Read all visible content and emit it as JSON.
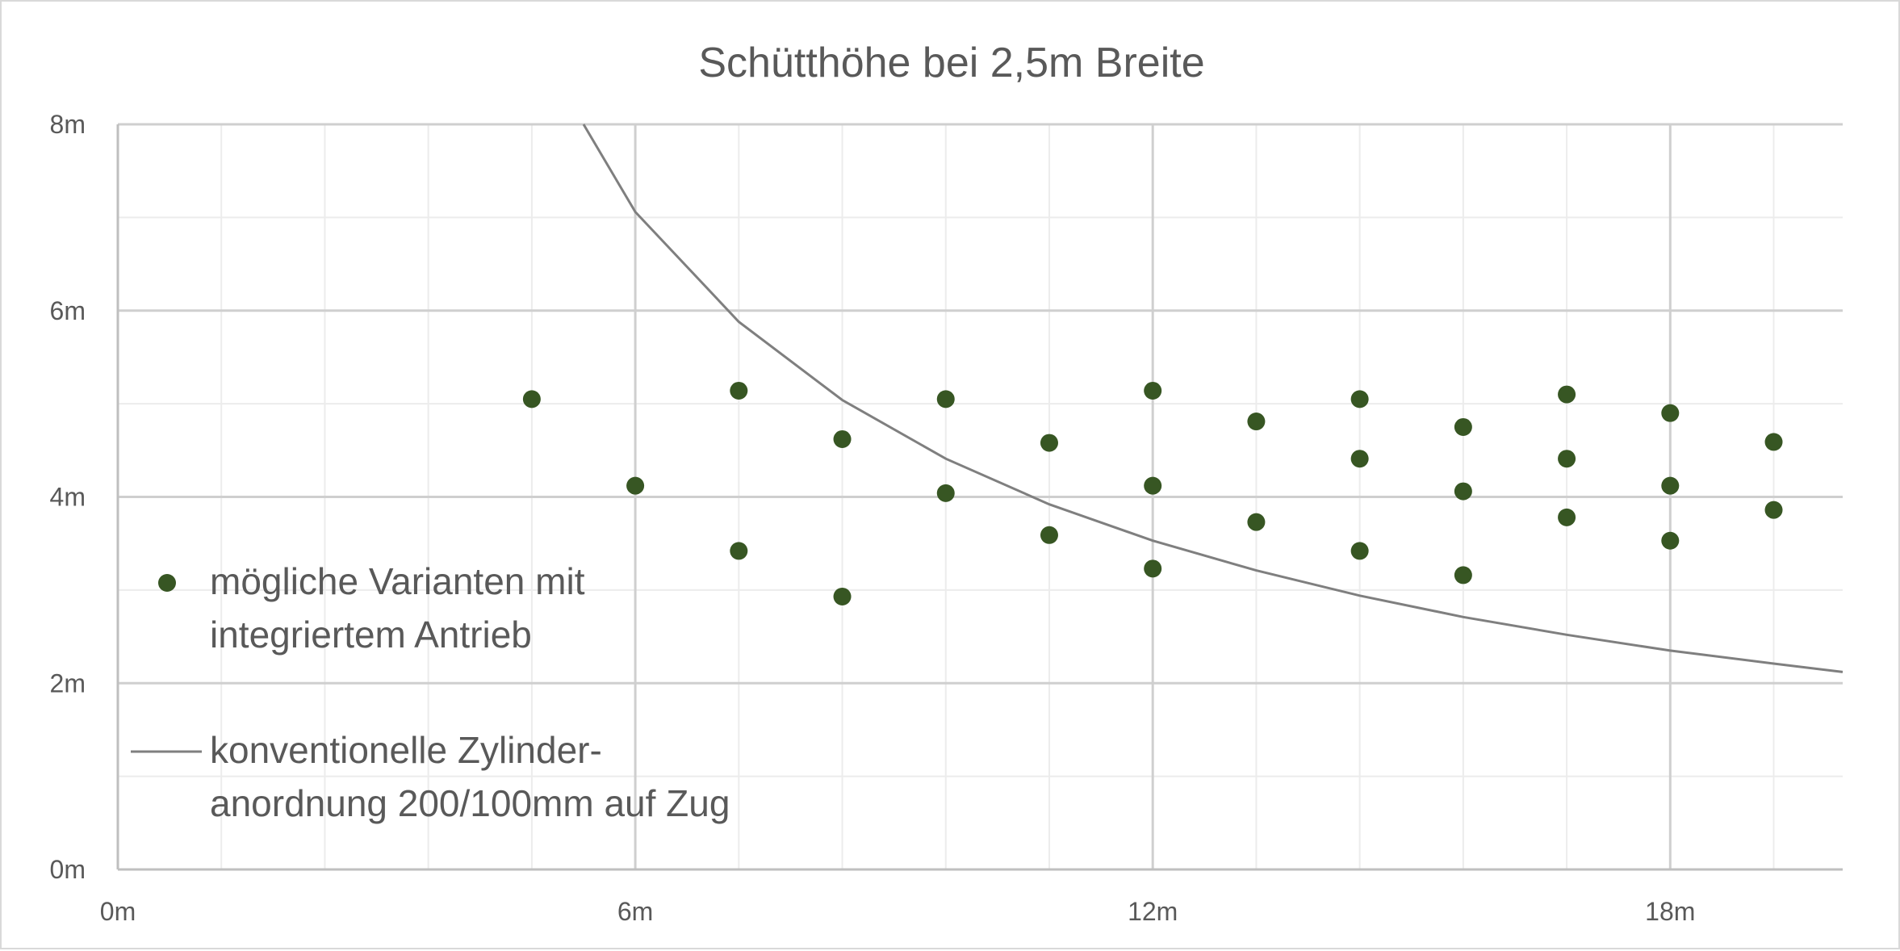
{
  "chart_data": {
    "type": "scatter",
    "title": "Schütthöhe bei 2,5m Breite",
    "xlabel": "",
    "ylabel": "",
    "xlim": [
      0,
      20
    ],
    "ylim": [
      0,
      8
    ],
    "x_ticks": [
      0,
      6,
      12,
      18
    ],
    "x_tick_labels": [
      "0m",
      "6m",
      "12m",
      "18m"
    ],
    "y_ticks": [
      0,
      2,
      4,
      6,
      8
    ],
    "y_tick_labels": [
      "0m",
      "2m",
      "4m",
      "6m",
      "8m"
    ],
    "x_minor_step": 1.2,
    "y_minor_step": 1,
    "grid": true,
    "legend_position": "left",
    "series": [
      {
        "name": "mögliche Varianten mit integriertem Antrieb",
        "legend_lines": [
          "mögliche Varianten mit",
          "integriertem Antrieb"
        ],
        "type": "scatter",
        "color": "#375623",
        "points": [
          [
            4.8,
            5.05
          ],
          [
            6.0,
            4.12
          ],
          [
            7.2,
            5.14
          ],
          [
            7.2,
            3.42
          ],
          [
            8.4,
            4.62
          ],
          [
            8.4,
            2.93
          ],
          [
            9.6,
            5.05
          ],
          [
            9.6,
            4.04
          ],
          [
            10.8,
            4.58
          ],
          [
            10.8,
            3.59
          ],
          [
            12.0,
            5.14
          ],
          [
            12.0,
            4.12
          ],
          [
            12.0,
            3.23
          ],
          [
            13.2,
            4.81
          ],
          [
            13.2,
            3.73
          ],
          [
            14.4,
            5.05
          ],
          [
            14.4,
            4.41
          ],
          [
            14.4,
            3.42
          ],
          [
            15.6,
            4.75
          ],
          [
            15.6,
            4.06
          ],
          [
            15.6,
            3.16
          ],
          [
            16.8,
            5.1
          ],
          [
            16.8,
            4.41
          ],
          [
            16.8,
            3.78
          ],
          [
            18.0,
            4.9
          ],
          [
            18.0,
            4.12
          ],
          [
            18.0,
            3.53
          ],
          [
            19.2,
            4.59
          ],
          [
            19.2,
            3.86
          ]
        ]
      },
      {
        "name": "konventionelle Zylinder-anordnung 200/100mm auf Zug",
        "legend_lines": [
          "konventionelle Zylinder-",
          "anordnung 200/100mm auf Zug"
        ],
        "type": "line",
        "color": "#7f7f7f",
        "points": [
          [
            5.4,
            8.0
          ],
          [
            6.0,
            7.06
          ],
          [
            7.2,
            5.88
          ],
          [
            8.4,
            5.04
          ],
          [
            9.6,
            4.41
          ],
          [
            10.8,
            3.92
          ],
          [
            12.0,
            3.53
          ],
          [
            13.2,
            3.21
          ],
          [
            14.4,
            2.94
          ],
          [
            15.6,
            2.71
          ],
          [
            16.8,
            2.52
          ],
          [
            18.0,
            2.35
          ],
          [
            19.2,
            2.21
          ],
          [
            20.0,
            2.12
          ]
        ]
      }
    ]
  }
}
